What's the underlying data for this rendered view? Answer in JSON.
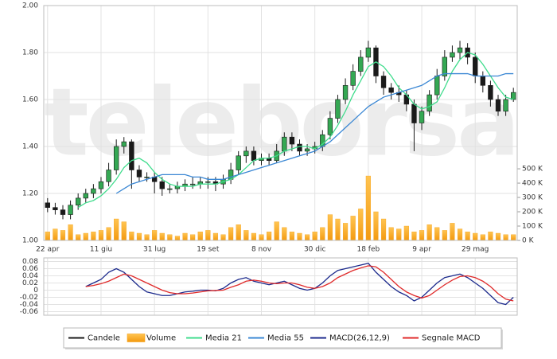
{
  "chart_data": [
    {
      "type": "candlestick",
      "watermark": "teleborsa",
      "categories": [
        "22 apr",
        null,
        null,
        null,
        null,
        null,
        null,
        "11 giu",
        null,
        null,
        null,
        null,
        null,
        null,
        "31 lug",
        null,
        null,
        null,
        null,
        null,
        null,
        "19 set",
        null,
        null,
        null,
        null,
        null,
        null,
        "8 nov",
        null,
        null,
        null,
        null,
        null,
        null,
        "30 dic",
        null,
        null,
        null,
        null,
        null,
        null,
        "18 feb",
        null,
        null,
        null,
        null,
        null,
        null,
        "9 apr",
        null,
        null,
        null,
        null,
        null,
        null,
        "29 mag",
        null,
        null,
        null,
        null,
        null
      ],
      "series": [
        {
          "name": "Candele",
          "color": "#1a1a1a",
          "up_color": "#34a853",
          "open": [
            1.16,
            1.14,
            1.13,
            1.11,
            1.15,
            1.18,
            1.2,
            1.22,
            1.25,
            1.3,
            1.4,
            1.42,
            1.3,
            1.27,
            1.27,
            1.25,
            1.22,
            1.22,
            1.23,
            1.24,
            1.24,
            1.25,
            1.25,
            1.24,
            1.26,
            1.3,
            1.36,
            1.38,
            1.34,
            1.35,
            1.34,
            1.38,
            1.44,
            1.41,
            1.38,
            1.39,
            1.4,
            1.45,
            1.52,
            1.6,
            1.66,
            1.72,
            1.78,
            1.82,
            1.7,
            1.65,
            1.63,
            1.62,
            1.58,
            1.5,
            1.55,
            1.62,
            1.7,
            1.78,
            1.8,
            1.82,
            1.78,
            1.7,
            1.66,
            1.6,
            1.55,
            1.6
          ],
          "high": [
            1.18,
            1.16,
            1.15,
            1.17,
            1.2,
            1.22,
            1.24,
            1.27,
            1.33,
            1.43,
            1.44,
            1.43,
            1.32,
            1.29,
            1.29,
            1.27,
            1.24,
            1.25,
            1.26,
            1.27,
            1.27,
            1.27,
            1.27,
            1.28,
            1.33,
            1.38,
            1.4,
            1.4,
            1.37,
            1.37,
            1.41,
            1.46,
            1.46,
            1.43,
            1.41,
            1.42,
            1.47,
            1.55,
            1.62,
            1.69,
            1.75,
            1.81,
            1.85,
            1.83,
            1.72,
            1.67,
            1.66,
            1.64,
            1.6,
            1.57,
            1.64,
            1.73,
            1.81,
            1.83,
            1.85,
            1.84,
            1.8,
            1.72,
            1.68,
            1.62,
            1.62,
            1.65
          ],
          "low": [
            1.12,
            1.11,
            1.09,
            1.09,
            1.13,
            1.16,
            1.18,
            1.2,
            1.23,
            1.28,
            1.37,
            1.22,
            1.25,
            1.25,
            1.2,
            1.19,
            1.2,
            1.2,
            1.21,
            1.22,
            1.22,
            1.22,
            1.21,
            1.22,
            1.24,
            1.28,
            1.33,
            1.32,
            1.32,
            1.32,
            1.33,
            1.36,
            1.38,
            1.36,
            1.36,
            1.37,
            1.38,
            1.43,
            1.5,
            1.58,
            1.64,
            1.7,
            1.76,
            1.67,
            1.62,
            1.6,
            1.59,
            1.55,
            1.38,
            1.47,
            1.53,
            1.6,
            1.68,
            1.76,
            1.77,
            1.75,
            1.67,
            1.63,
            1.57,
            1.53,
            1.53,
            1.59
          ],
          "close": [
            1.14,
            1.13,
            1.11,
            1.15,
            1.18,
            1.2,
            1.22,
            1.25,
            1.3,
            1.4,
            1.42,
            1.3,
            1.27,
            1.27,
            1.25,
            1.22,
            1.22,
            1.23,
            1.24,
            1.24,
            1.25,
            1.25,
            1.24,
            1.26,
            1.3,
            1.36,
            1.38,
            1.34,
            1.35,
            1.34,
            1.38,
            1.44,
            1.41,
            1.38,
            1.39,
            1.4,
            1.45,
            1.52,
            1.6,
            1.66,
            1.72,
            1.78,
            1.82,
            1.7,
            1.65,
            1.63,
            1.62,
            1.58,
            1.5,
            1.55,
            1.62,
            1.7,
            1.78,
            1.8,
            1.82,
            1.78,
            1.7,
            1.66,
            1.6,
            1.55,
            1.6,
            1.63
          ]
        },
        {
          "name": "Volume",
          "color": "#f5a21c",
          "axis": "y2",
          "values": [
            60,
            80,
            70,
            110,
            40,
            50,
            60,
            70,
            90,
            150,
            130,
            60,
            50,
            40,
            70,
            50,
            40,
            30,
            50,
            40,
            60,
            70,
            50,
            40,
            90,
            110,
            70,
            50,
            40,
            60,
            130,
            90,
            60,
            50,
            40,
            60,
            90,
            180,
            150,
            120,
            170,
            220,
            450,
            200,
            150,
            90,
            80,
            100,
            60,
            70,
            110,
            90,
            70,
            120,
            80,
            60,
            50,
            40,
            60,
            50,
            40,
            40
          ]
        },
        {
          "name": "Media 21",
          "color": "#3fdc8c",
          "values": [
            null,
            null,
            null,
            null,
            1.14,
            1.16,
            1.17,
            1.19,
            1.22,
            1.26,
            1.31,
            1.34,
            1.35,
            1.33,
            1.29,
            1.26,
            1.24,
            1.23,
            1.23,
            1.23,
            1.24,
            1.24,
            1.24,
            1.25,
            1.26,
            1.28,
            1.31,
            1.34,
            1.35,
            1.35,
            1.36,
            1.38,
            1.39,
            1.4,
            1.4,
            1.39,
            1.41,
            1.44,
            1.49,
            1.55,
            1.62,
            1.68,
            1.74,
            1.76,
            1.74,
            1.7,
            1.65,
            1.62,
            1.58,
            1.56,
            1.57,
            1.59,
            1.65,
            1.72,
            1.77,
            1.8,
            1.79,
            1.75,
            1.7,
            1.65,
            1.61,
            1.6
          ]
        },
        {
          "name": "Media 55",
          "color": "#3a87d4",
          "values": [
            null,
            null,
            null,
            null,
            null,
            null,
            null,
            null,
            null,
            1.2,
            1.22,
            1.24,
            1.25,
            1.26,
            1.27,
            1.28,
            1.28,
            1.28,
            1.28,
            1.27,
            1.27,
            1.26,
            1.26,
            1.26,
            1.27,
            1.28,
            1.29,
            1.3,
            1.31,
            1.32,
            1.33,
            1.34,
            1.35,
            1.36,
            1.37,
            1.38,
            1.4,
            1.42,
            1.45,
            1.48,
            1.51,
            1.54,
            1.57,
            1.59,
            1.61,
            1.62,
            1.63,
            1.64,
            1.65,
            1.66,
            1.68,
            1.7,
            1.71,
            1.71,
            1.71,
            1.71,
            1.7,
            1.7,
            1.7,
            1.7,
            1.71,
            1.71
          ]
        }
      ],
      "ylim": [
        1,
        2
      ],
      "yticks": [
        {
          "value": 1,
          "label": "1.00"
        },
        {
          "value": 1.2,
          "label": "1.20"
        },
        {
          "value": 1.4,
          "label": "1.40"
        },
        {
          "value": 1.6,
          "label": "1.60"
        },
        {
          "value": 1.8,
          "label": "1.80"
        },
        {
          "value": 2,
          "label": "2.00"
        }
      ],
      "y2lim": [
        0,
        1640
      ],
      "y2ticks": [
        {
          "value": 0,
          "label": "0 K"
        },
        {
          "value": 100,
          "label": "100 K"
        },
        {
          "value": 200,
          "label": "200 K"
        },
        {
          "value": 300,
          "label": "300 K"
        },
        {
          "value": 400,
          "label": "400 K"
        },
        {
          "value": 500,
          "label": "500 K"
        }
      ],
      "grid": true,
      "legend": "bottom"
    },
    {
      "type": "line",
      "series": [
        {
          "name": "MACD(26,12,9)",
          "color": "#1c2a8c",
          "values": [
            null,
            null,
            null,
            null,
            null,
            0.01,
            0.02,
            0.03,
            0.05,
            0.06,
            0.05,
            0.03,
            0.01,
            -0.005,
            -0.01,
            -0.015,
            -0.015,
            -0.01,
            -0.005,
            -0.003,
            0,
            0,
            -0.002,
            0.005,
            0.02,
            0.03,
            0.035,
            0.025,
            0.02,
            0.015,
            0.02,
            0.025,
            0.015,
            0.005,
            0,
            0.005,
            0.02,
            0.04,
            0.055,
            0.06,
            0.065,
            0.07,
            0.075,
            0.05,
            0.03,
            0.01,
            -0.005,
            -0.015,
            -0.03,
            -0.02,
            0,
            0.02,
            0.035,
            0.04,
            0.045,
            0.035,
            0.02,
            0.005,
            -0.015,
            -0.035,
            -0.04,
            -0.02
          ]
        },
        {
          "name": "Segnale MACD",
          "color": "#e02a2a",
          "values": [
            null,
            null,
            null,
            null,
            null,
            0.01,
            0.013,
            0.018,
            0.025,
            0.035,
            0.045,
            0.04,
            0.03,
            0.02,
            0.01,
            0,
            -0.007,
            -0.01,
            -0.01,
            -0.008,
            -0.005,
            -0.002,
            -0.001,
            0,
            0.008,
            0.015,
            0.025,
            0.028,
            0.025,
            0.02,
            0.018,
            0.02,
            0.02,
            0.015,
            0.008,
            0.005,
            0.01,
            0.02,
            0.035,
            0.045,
            0.055,
            0.062,
            0.068,
            0.065,
            0.05,
            0.03,
            0.01,
            -0.005,
            -0.015,
            -0.022,
            -0.015,
            0,
            0.015,
            0.028,
            0.038,
            0.04,
            0.035,
            0.025,
            0.01,
            -0.01,
            -0.025,
            -0.03
          ]
        }
      ],
      "ylim": [
        -0.07,
        0.09
      ],
      "yticks": [
        0.08,
        0.06,
        0.04,
        0.02,
        0,
        -0.02,
        -0.04,
        -0.06
      ],
      "grid": true
    }
  ]
}
